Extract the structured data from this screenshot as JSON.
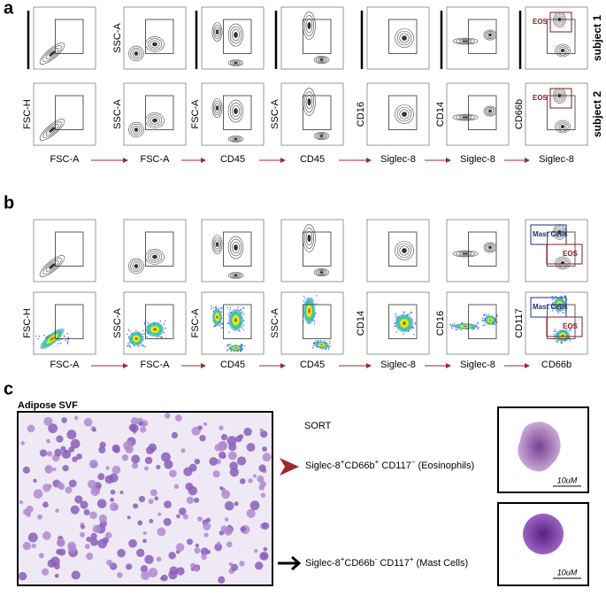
{
  "panels": [
    {
      "label": "a",
      "rows": [
        {
          "label": "subject 1",
          "plots": [
            {},
            {
              "y_label": "SSC-A"
            },
            {},
            {},
            {},
            {},
            {
              "gates": [
                "EOS"
              ]
            }
          ]
        },
        {
          "label": "subject 2",
          "plots": [
            {
              "y_label": "FSC-H"
            },
            {
              "y_label": "SSC-A"
            },
            {
              "y_label": "FSC-A"
            },
            {
              "y_label": "SSC-A"
            },
            {
              "y_label": "CD16"
            },
            {
              "y_label": "CD14"
            },
            {
              "y_label": "CD66b",
              "gates": [
                "EOS"
              ]
            }
          ]
        }
      ],
      "x_labels": [
        "FSC-A",
        "FSC-A",
        "CD45",
        "CD45",
        "Siglec-8",
        "Siglec-8",
        "Siglec-8"
      ]
    },
    {
      "label": "b",
      "rows": [
        {
          "plots": [
            {},
            {},
            {},
            {},
            {},
            {},
            {
              "gates": [
                "Mast Cells",
                "EOS"
              ]
            }
          ]
        },
        {
          "plots": [
            {
              "y_label": "FSC-H"
            },
            {
              "y_label": "SSC-A"
            },
            {
              "y_label": "FSC-A"
            },
            {
              "y_label": "SSC-A"
            },
            {
              "y_label": "CD14"
            },
            {
              "y_label": "CD16"
            },
            {
              "y_label": "CD117",
              "gates": [
                "Mast Cells",
                "EOS"
              ]
            }
          ]
        }
      ],
      "x_labels": [
        "FSC-A",
        "FSC-A",
        "CD45",
        "CD45",
        "Siglec-8",
        "Siglec-8",
        "CD66b"
      ]
    },
    {
      "label": "c",
      "image_title": "Adipose SVF",
      "sort_label": "SORT",
      "populations": [
        [
          {
            "text": "Siglec-8"
          },
          {
            "text": "+",
            "sup": true
          },
          {
            "text": "CD66b"
          },
          {
            "text": "+",
            "sup": true
          },
          {
            "text": " CD117"
          },
          {
            "text": "−",
            "sup": true
          },
          {
            "text": " (Eosinophils)"
          }
        ],
        [
          {
            "text": "Siglec-8"
          },
          {
            "text": "+",
            "sup": true
          },
          {
            "text": "CD66b"
          },
          {
            "text": "-",
            "sup": true
          },
          {
            "text": " CD117"
          },
          {
            "text": "+",
            "sup": true
          },
          {
            "text": " (Mast Cells)"
          }
        ]
      ],
      "scale_bars": [
        "10uM",
        "10uM"
      ]
    }
  ]
}
